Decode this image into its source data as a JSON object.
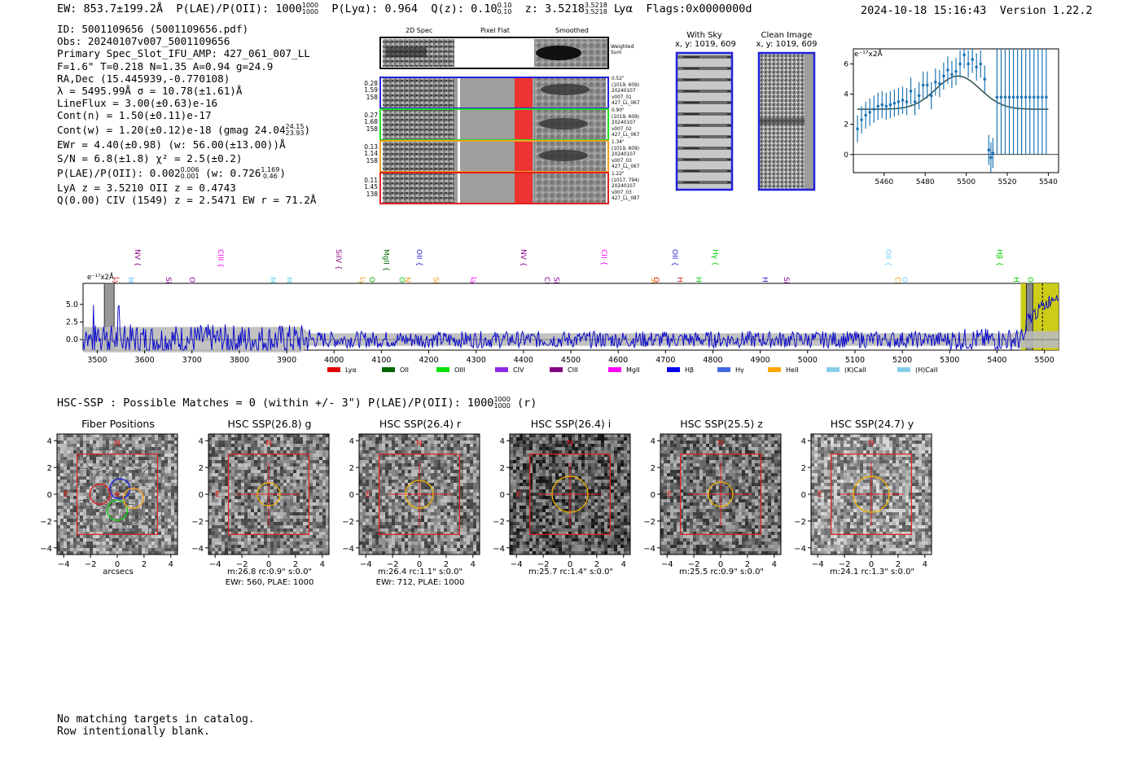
{
  "header": {
    "ew_label": "EW: 853.7±199.2Å",
    "plae_label": "P(LAE)/P(OII): 1000",
    "plae_hi": "1000",
    "plae_lo": "1000",
    "plya_label": "P(Lyα): 0.964",
    "qz_label": "Q(z): 0.10",
    "qz_hi": "0.10",
    "qz_lo": "0.10",
    "z_label": "z: 3.5218",
    "z_hi": "3.5218",
    "z_lo": "3.5218",
    "z_line": "Lyα",
    "flags": "Flags:0x0000000d",
    "timestamp": "2024-10-18 15:16:43",
    "version": "Version 1.22.2"
  },
  "info": {
    "id": "ID: 5001109656 (5001109656.pdf)",
    "obs": "Obs: 20240107v007_5001109656",
    "primary": "Primary Spec_Slot_IFU_AMP: 427_061_007_LL",
    "params": "F=1.6\"  T=0.218  N=1.35  A=0.94  g=24.9",
    "radec": "RA,Dec (15.445939,-0.770108)",
    "lambda": "λ = 5495.99Å  σ = 10.78(±1.61)Å",
    "lineflux": "LineFlux = 3.00(±0.63)e-16",
    "contn": "Cont(n) = 1.50(±0.11)e-17",
    "contw": "Cont(w) = 1.20(±0.12)e-18 (gmag 24.04",
    "gmag_hi": "24.15",
    "gmag_lo": "23.93",
    "ewr": "EWr = 4.40(±0.98) (w: 56.00(±13.00))Å",
    "sn": "S/N = 6.8(±1.8)  χ² = 2.5(±0.2)",
    "plae": "P(LAE)/P(OII): 0.002",
    "plae_hi": "0.006",
    "plae_lo": "0.001",
    "plae_w": "(w: 0.726",
    "plae_w_hi": "1.169",
    "plae_w_lo": "0.46",
    "lya": "LyA z = 3.5210  OII z = 0.4743",
    "civ": "Q(0.00) CIV (1549) z = 2.5471  EW r = 71.2Å"
  },
  "cutouts": {
    "col_titles": [
      "2D Spec",
      "Pixel Flat",
      "Smoothed"
    ],
    "weighted_sum": "Weighted Sum",
    "rows": [
      {
        "vals": [
          "0.28",
          "1.59",
          "158"
        ],
        "info": [
          "0.52\"",
          "(1019, 609)",
          "20240107",
          "v007_01",
          "427_LL_067"
        ],
        "color": "#2222dd"
      },
      {
        "vals": [
          "0.27",
          "1.68",
          "158"
        ],
        "info": [
          "0.90\"",
          "(1019, 609)",
          "20240107",
          "v007_02",
          "427_LL_067"
        ],
        "color": "#22dd22"
      },
      {
        "vals": [
          "0.13",
          "1.14",
          "158"
        ],
        "info": [
          "1.34\"",
          "(1019, 609)",
          "20240107",
          "v007_03",
          "427_LL_067"
        ],
        "color": "#f0a020"
      },
      {
        "vals": [
          "0.11",
          "1.45",
          "138"
        ],
        "info": [
          "1.22\"",
          "(1017, 794)",
          "20240107",
          "v007_03",
          "427_LL_087"
        ],
        "color": "#dd2222"
      }
    ]
  },
  "sky": {
    "with_sky_title": "With Sky",
    "with_sky_xy": "x, y: 1019, 609",
    "clean_title": "Clean Image",
    "clean_xy": "x, y: 1019, 609"
  },
  "fit_chart": {
    "unit_label": "e⁻¹⁷x2Å",
    "xticks": [
      "5460",
      "5480",
      "5500",
      "5520",
      "5540"
    ],
    "yticks": [
      "0",
      "2",
      "4",
      "6"
    ]
  },
  "chart_data": [
    {
      "type": "scatter",
      "title": "",
      "xlabel": "",
      "ylabel": "e⁻¹⁷x2Å",
      "xlim": [
        5445,
        5545
      ],
      "ylim": [
        -1.2,
        7
      ],
      "x": [
        5447,
        5449,
        5451,
        5453,
        5455,
        5457,
        5459,
        5461,
        5463,
        5465,
        5467,
        5469,
        5471,
        5473,
        5475,
        5477,
        5479,
        5481,
        5483,
        5485,
        5487,
        5489,
        5491,
        5493,
        5495,
        5497,
        5499,
        5501,
        5503,
        5505,
        5507,
        5509,
        5511,
        5512,
        5513,
        5515,
        5517,
        5519,
        5521,
        5523,
        5525,
        5527,
        5529,
        5531,
        5533,
        5535,
        5537,
        5539
      ],
      "y": [
        1.7,
        2.3,
        2.6,
        2.8,
        3.0,
        3.2,
        3.3,
        3.2,
        3.3,
        3.4,
        3.5,
        3.6,
        3.5,
        4.2,
        3.5,
        3.9,
        4.6,
        4.6,
        3.9,
        4.8,
        4.7,
        5.2,
        5.6,
        5.3,
        5.5,
        6.0,
        6.6,
        6.0,
        6.3,
        5.8,
        6.0,
        5.0,
        0.3,
        -0.2,
        0.1,
        3.8,
        3.8,
        3.8,
        3.8,
        3.8,
        3.8,
        3.8,
        3.8,
        3.8,
        3.8,
        3.8,
        3.8,
        3.8
      ],
      "model": {
        "center": 5495.99,
        "sigma": 10.78,
        "amp": 2.2,
        "baseline": 3.0
      }
    },
    {
      "type": "line",
      "title": "",
      "xlabel": "",
      "ylabel": "e⁻¹⁷x2Å",
      "xlim": [
        3470,
        5530
      ],
      "ylim": [
        -1.5,
        8
      ],
      "xticks": [
        3500,
        3600,
        3700,
        3800,
        3900,
        4000,
        4100,
        4200,
        4300,
        4400,
        4500,
        4600,
        4700,
        4800,
        4900,
        5000,
        5100,
        5200,
        5300,
        5400,
        5500
      ],
      "yticks": [
        0.0,
        2.5,
        5.0
      ],
      "series": [
        {
          "name": "spectrum",
          "x_range": [
            3470,
            5530
          ],
          "n_points": 1030
        }
      ],
      "highlight_region": [
        5450,
        5530
      ],
      "line_markers": [
        {
          "label": "Lyα",
          "x": 3530,
          "color": "#d22"
        },
        {
          "label": "MgII",
          "x": 3560,
          "color": "#6cf"
        },
        {
          "label": "NV",
          "x": 3575,
          "color": "#808"
        },
        {
          "label": "SiII",
          "x": 3640,
          "color": "#808"
        },
        {
          "label": "OVI",
          "x": 3690,
          "color": "#808"
        },
        {
          "label": "CIII",
          "x": 3750,
          "color": "#f0f"
        },
        {
          "label": "MgII",
          "x": 3860,
          "color": "#6cf"
        },
        {
          "label": "MgII",
          "x": 3895,
          "color": "#6cf"
        },
        {
          "label": "SiIV",
          "x": 4000,
          "color": "#808"
        },
        {
          "label": "Lyα",
          "x": 4050,
          "color": "#f0a020"
        },
        {
          "label": "OII",
          "x": 4070,
          "color": "#0a0"
        },
        {
          "label": "MgII",
          "x": 4100,
          "color": "#060"
        },
        {
          "label": "OIII",
          "x": 4133,
          "color": "#0c0"
        },
        {
          "label": "NV",
          "x": 4145,
          "color": "#f0a020"
        },
        {
          "label": "OII",
          "x": 4170,
          "color": "#22c"
        },
        {
          "label": "SiII",
          "x": 4205,
          "color": "#f0a020"
        },
        {
          "label": "Lyα",
          "x": 4285,
          "color": "#f0f"
        },
        {
          "label": "NV",
          "x": 4390,
          "color": "#808"
        },
        {
          "label": "CIV",
          "x": 4440,
          "color": "#808"
        },
        {
          "label": "SiII",
          "x": 4460,
          "color": "#808"
        },
        {
          "label": "CII",
          "x": 4560,
          "color": "#f0f"
        },
        {
          "label": "SiIV",
          "x": 4665,
          "color": "#f0a020"
        },
        {
          "label": "OVI",
          "x": 4670,
          "color": "#d22"
        },
        {
          "label": "OII",
          "x": 4710,
          "color": "#22c"
        },
        {
          "label": "HeII",
          "x": 4720,
          "color": "#d22"
        },
        {
          "label": "Hγ",
          "x": 4760,
          "color": "#0c0"
        },
        {
          "label": "Hγ",
          "x": 4795,
          "color": "#0c0"
        },
        {
          "label": "Hγ",
          "x": 4900,
          "color": "#22c"
        },
        {
          "label": "SiIV",
          "x": 4945,
          "color": "#808"
        },
        {
          "label": "OII",
          "x": 5160,
          "color": "#6cf"
        },
        {
          "label": "CIV",
          "x": 5180,
          "color": "#f0a020"
        },
        {
          "label": "OII",
          "x": 5195,
          "color": "#6cf"
        },
        {
          "label": "Hβ",
          "x": 5395,
          "color": "#0c0"
        },
        {
          "label": "Hβ",
          "x": 5430,
          "color": "#0c0"
        },
        {
          "label": "OIII",
          "x": 5460,
          "color": "#0c0"
        }
      ],
      "legend": [
        {
          "label": "Lyα",
          "color": "#e00000"
        },
        {
          "label": "OII",
          "color": "#006400"
        },
        {
          "label": "OIII",
          "color": "#00e000"
        },
        {
          "label": "CIV",
          "color": "#8a2be2"
        },
        {
          "label": "CIII",
          "color": "#800080"
        },
        {
          "label": "MgII",
          "color": "#ff00ff"
        },
        {
          "label": "Hβ",
          "color": "#0000ee"
        },
        {
          "label": "Hγ",
          "color": "#4169e1"
        },
        {
          "label": "HeII",
          "color": "#ffa500"
        },
        {
          "label": "(K)CaII",
          "color": "#87ceeb"
        },
        {
          "label": "(H)CaII",
          "color": "#87ceeb"
        }
      ]
    }
  ],
  "spectrum_unit": "e⁻¹⁷x2Å",
  "hsc": {
    "summary": "HSC-SSP : Possible Matches = 0 (within +/- 3\")  P(LAE)/P(OII): 1000",
    "sum_hi": "1000",
    "sum_lo": "1000",
    "sum_tail": "(r)",
    "north": "N",
    "east": "E",
    "xticks": [
      "−4",
      "−2",
      "0",
      "2",
      "4"
    ],
    "yticks": [
      "4",
      "2",
      "0",
      "−2",
      "−4"
    ],
    "panels": [
      {
        "title": "Fiber Positions",
        "cap1": "arcsecs",
        "cap2": ""
      },
      {
        "title": "HSC SSP(26.8) g",
        "cap1": "m:26.8 rc:0.9\"  s:0.0\"",
        "cap2": "EWr: 560, PLAE: 1000"
      },
      {
        "title": "HSC SSP(26.4) r",
        "cap1": "m:26.4 rc:1.1\"  s:0.0\"",
        "cap2": "EWr: 712, PLAE: 1000"
      },
      {
        "title": "HSC SSP(26.4) i",
        "cap1": "m:25.7 rc:1.4\"  s:0.0\"",
        "cap2": ""
      },
      {
        "title": "HSC SSP(25.5) z",
        "cap1": "m:25.5 rc:0.9\"  s:0.0\"",
        "cap2": ""
      },
      {
        "title": "HSC SSP(24.7) y",
        "cap1": "m:24.1 rc:1.3\"  s:0.0\"",
        "cap2": ""
      }
    ]
  },
  "footer": {
    "line1": "No matching targets in catalog.",
    "line2": "Row intentionally blank."
  },
  "colors": {
    "spectrum": "#0000cc",
    "fit_points": "#1f77b4",
    "model": "#2f4f4f",
    "highlight": "#c8c800"
  }
}
